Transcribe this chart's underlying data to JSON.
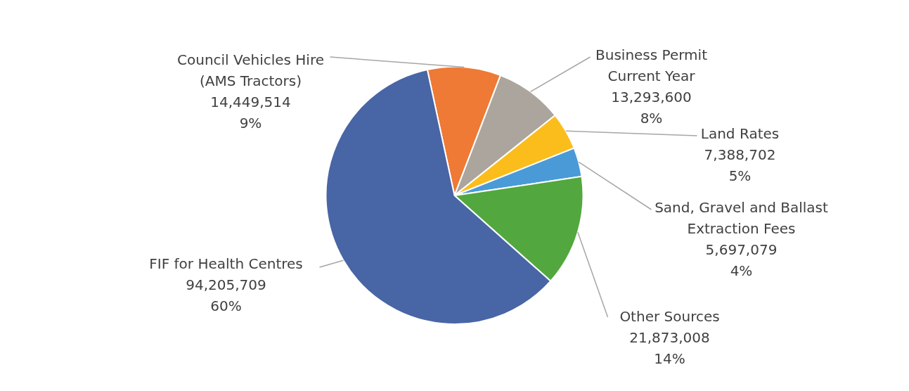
{
  "chart_data": {
    "type": "pie",
    "categories": [
      "Council Vehicles Hire\n(AMS Tractors)",
      "Business Permit\nCurrent Year",
      "Land Rates",
      "Sand, Gravel and Ballast\nExtraction Fees",
      "Other Sources",
      "FIF for Health Centres"
    ],
    "values": [
      14449514,
      13293600,
      7388702,
      5697079,
      21873008,
      94205709
    ],
    "value_labels": [
      "14,449,514\n9%",
      "13,293,600\n8%",
      "7,388,702\n5%",
      "5,697,079\n4%",
      "21,873,008\n14%",
      "94,205,709\n60%"
    ],
    "colors": [
      "#ee7a35",
      "#aba59e",
      "#fbbd1b",
      "#4a9ad8",
      "#52a83e",
      "#4865a5"
    ]
  }
}
